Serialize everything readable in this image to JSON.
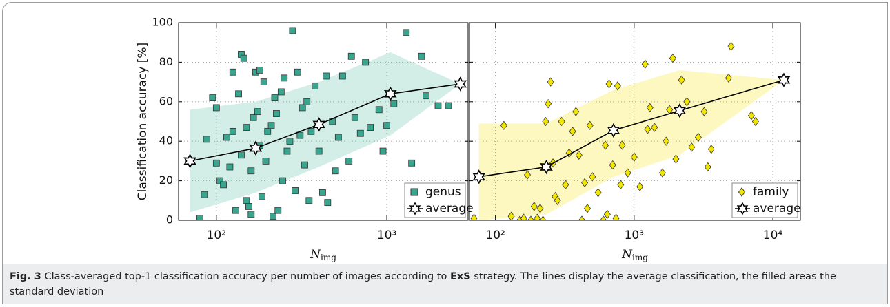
{
  "chart_data": [
    {
      "type": "scatter",
      "ylabel": "Classification accuracy [%]",
      "xlabel": {
        "main": "N",
        "sub": "img"
      },
      "log_x": true,
      "grid": true,
      "legend": "lower right",
      "show_ytick_labels": true,
      "xlim": [
        60,
        3000
      ],
      "ylim": [
        0,
        100
      ],
      "xticks": [
        {
          "value": 100,
          "label": "10²"
        },
        {
          "value": 1000,
          "label": "10³"
        }
      ],
      "yticks": [
        0,
        20,
        40,
        60,
        80,
        100
      ],
      "series": [
        {
          "name": "genus",
          "type": "scatter",
          "color": "#3aa58e",
          "x": [
            80,
            85,
            88,
            95,
            100,
            100,
            105,
            110,
            115,
            120,
            125,
            125,
            130,
            135,
            140,
            140,
            145,
            150,
            150,
            155,
            160,
            160,
            165,
            170,
            175,
            180,
            180,
            185,
            190,
            195,
            200,
            210,
            215,
            220,
            225,
            230,
            240,
            245,
            250,
            260,
            270,
            280,
            290,
            300,
            310,
            320,
            330,
            340,
            350,
            360,
            380,
            400,
            420,
            440,
            450,
            480,
            500,
            520,
            550,
            600,
            620,
            650,
            700,
            750,
            800,
            900,
            950,
            1000,
            1100,
            1300,
            1400,
            1600,
            1700,
            2000,
            2300
          ],
          "values": [
            1,
            13,
            41,
            62,
            57,
            29,
            20,
            18,
            42,
            27,
            75,
            45,
            5,
            64,
            84,
            33,
            82,
            10,
            47,
            7,
            3,
            25,
            52,
            75,
            55,
            76,
            38,
            12,
            70,
            30,
            45,
            48,
            2,
            62,
            54,
            5,
            65,
            20,
            72,
            35,
            40,
            96,
            15,
            75,
            43,
            57,
            28,
            60,
            10,
            45,
            68,
            35,
            14,
            73,
            9,
            50,
            25,
            42,
            73,
            30,
            83,
            52,
            44,
            80,
            47,
            56,
            35,
            48,
            59,
            95,
            29,
            83,
            63,
            58,
            58
          ]
        },
        {
          "name": "average",
          "type": "line",
          "color": "#000000",
          "band_color": "#d3eee7",
          "x": [
            70,
            170,
            400,
            1050,
            2700
          ],
          "values": [
            30,
            36.5,
            48.5,
            64,
            69
          ],
          "band_lower": [
            4,
            14,
            27,
            43,
            69
          ],
          "band_upper": [
            56,
            60,
            70,
            85,
            69
          ]
        }
      ]
    },
    {
      "type": "scatter",
      "xlabel": {
        "main": "N",
        "sub": "img"
      },
      "log_x": true,
      "grid": true,
      "legend": "lower right",
      "show_ytick_labels": false,
      "xlim": [
        65,
        15800
      ],
      "ylim": [
        0,
        100
      ],
      "xticks": [
        {
          "value": 100,
          "label": "10²"
        },
        {
          "value": 1000,
          "label": "10³"
        },
        {
          "value": 10000,
          "label": "10⁴"
        }
      ],
      "yticks": [
        0,
        20,
        40,
        60,
        80,
        100
      ],
      "series": [
        {
          "name": "family",
          "type": "scatter",
          "color": "#f2e600",
          "x": [
            70,
            115,
            130,
            150,
            160,
            170,
            180,
            190,
            200,
            210,
            220,
            230,
            240,
            250,
            260,
            270,
            280,
            300,
            320,
            340,
            360,
            380,
            400,
            420,
            440,
            460,
            480,
            500,
            550,
            600,
            620,
            640,
            660,
            700,
            740,
            760,
            800,
            820,
            900,
            1000,
            1100,
            1200,
            1250,
            1300,
            1400,
            1600,
            1700,
            1800,
            1900,
            2000,
            2200,
            2400,
            2600,
            2900,
            3200,
            3400,
            3600,
            4800,
            5000,
            7000,
            7500
          ],
          "values": [
            1,
            48,
            2,
            0,
            1,
            23,
            0,
            7,
            1,
            6,
            0,
            50,
            59,
            70,
            29,
            12,
            10,
            50,
            18,
            34,
            45,
            55,
            33,
            0,
            19,
            6,
            48,
            22,
            14,
            0,
            38,
            3,
            69,
            28,
            1,
            68,
            18,
            38,
            24,
            32,
            17,
            79,
            46,
            57,
            47,
            24,
            40,
            56,
            82,
            31,
            71,
            60,
            37,
            42,
            55,
            27,
            36,
            72,
            88,
            53,
            50
          ]
        },
        {
          "name": "average",
          "type": "line",
          "color": "#000000",
          "band_color": "#fdf8bf",
          "x": [
            76,
            233,
            710,
            2130,
            12000
          ],
          "values": [
            22,
            27,
            45.5,
            55.5,
            71
          ],
          "band_lower": [
            0,
            3,
            22,
            33,
            71
          ],
          "band_upper": [
            49,
            49,
            66,
            76,
            71
          ]
        }
      ]
    }
  ],
  "caption": {
    "label": "Fig. 3",
    "text1": "Class-averaged top-1 classification accuracy per number of images according to",
    "strategy": "ExS",
    "text2": "strategy. The lines display the average classification, the filled areas the standard deviation"
  }
}
